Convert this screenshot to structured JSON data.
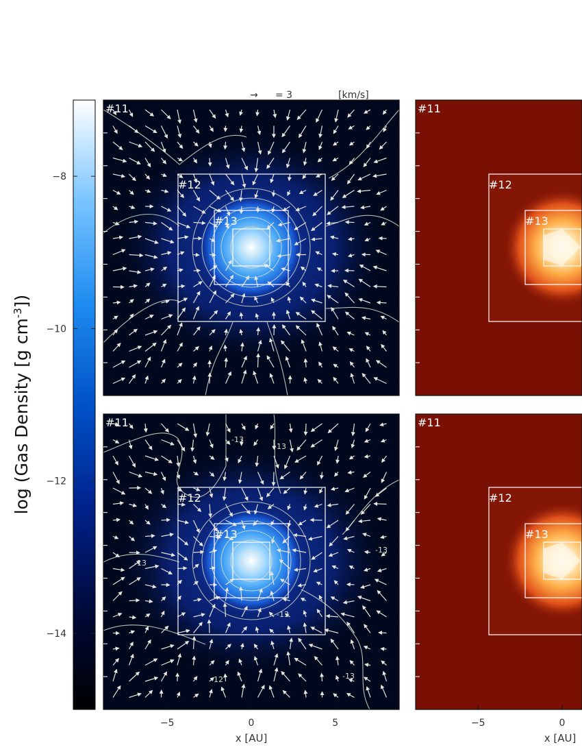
{
  "chart_data": {
    "type": "heatmap",
    "colorbar": {
      "label_prefix": "log (Gas Density [g cm",
      "label_sup": "-3",
      "label_suffix": "])",
      "range": [
        -15,
        -7
      ],
      "ticks": [
        -8,
        -10,
        -12,
        -14
      ],
      "tick_labels": [
        "−8",
        "−10",
        "−12",
        "−14"
      ],
      "colormap": [
        "#000000",
        "#000a3c",
        "#00228c",
        "#0052c8",
        "#1e8cf0",
        "#78c4ff",
        "#ffffff"
      ]
    },
    "velocity_key": {
      "arrow": "→",
      "text": "= 3",
      "unit": "[km/s]",
      "value": 3
    },
    "x_axis": {
      "label": "x [AU]",
      "range": [
        -8.8,
        8.8
      ],
      "ticks": [
        -5,
        0,
        5
      ],
      "tick_labels": [
        "−5",
        "0",
        "5"
      ]
    },
    "panels": [
      {
        "id": "top-left",
        "field": "gas density",
        "grid_labels": [
          "#11",
          "#12",
          "#13"
        ],
        "contour_labels": [],
        "colors": {
          "outer": "#00081e",
          "mid": "#0a2a9a",
          "inner": "#1e7ae6",
          "core": "#ffffff"
        }
      },
      {
        "id": "top-right",
        "field": "temperature",
        "grid_labels": [
          "#11",
          "#12",
          "#13"
        ],
        "contour_labels": [],
        "colors": {
          "outer": "#7a1004",
          "mid": "#8a1a06",
          "inner": "#ff8a2a",
          "core": "#ffffff"
        }
      },
      {
        "id": "bottom-left",
        "field": "gas density",
        "grid_labels": [
          "#11",
          "#12",
          "#13"
        ],
        "contour_labels": [
          "-13",
          "-13",
          "-13",
          "-13",
          "-13",
          "-13",
          "-12"
        ],
        "colors": {
          "outer": "#00081e",
          "mid": "#0a2a9a",
          "inner": "#1e7ae6",
          "core": "#ffffff"
        }
      },
      {
        "id": "bottom-right",
        "field": "temperature",
        "grid_labels": [
          "#11",
          "#12",
          "#13"
        ],
        "contour_labels": [],
        "colors": {
          "outer": "#7a1004",
          "mid": "#8a1a06",
          "inner": "#ff8a2a",
          "core": "#ffffff"
        }
      }
    ]
  }
}
